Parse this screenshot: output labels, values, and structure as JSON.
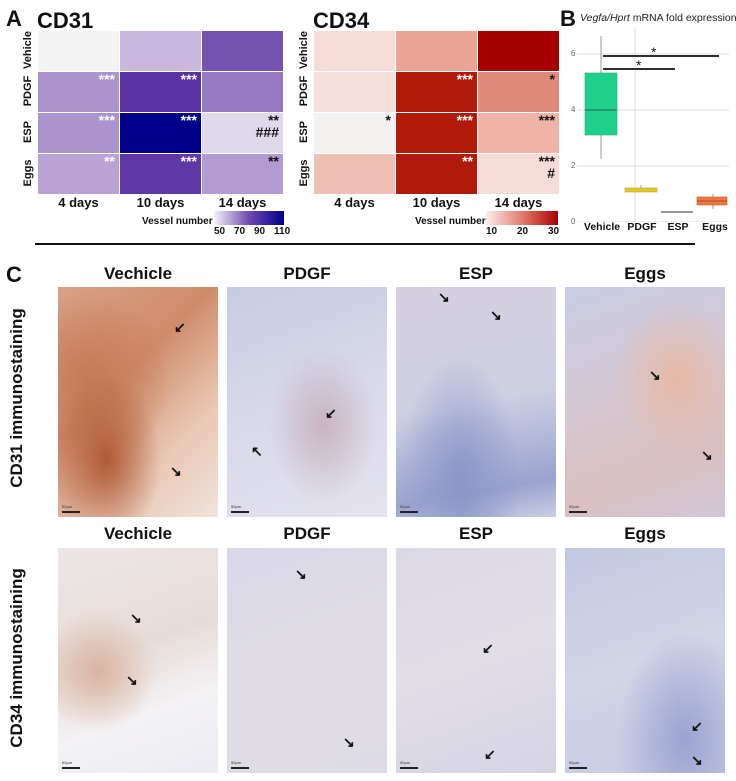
{
  "panel_A": {
    "letter": "A",
    "cd31": {
      "title": "CD31",
      "rows": [
        "Vehicle",
        "PDGF",
        "ESP",
        "Eggs"
      ],
      "columns": [
        "4 days",
        "10 days",
        "14 days"
      ],
      "colors": [
        [
          "#f4f3f4",
          "#c9b7de",
          "#7352b0"
        ],
        [
          "#ab94cd",
          "#5b32a3",
          "#9778c3"
        ],
        [
          "#ab94cd",
          "#00008b",
          "#e0d9ea"
        ],
        [
          "#b8a3d4",
          "#5f37a6",
          "#b19bd0"
        ]
      ],
      "sig": [
        [
          "",
          "",
          ""
        ],
        [
          "***",
          "***",
          ""
        ],
        [
          "***",
          "***",
          "**\n###"
        ],
        [
          "**",
          "***",
          "**"
        ]
      ],
      "sig_color": [
        [
          "#fff",
          "#fff",
          "#fff"
        ],
        [
          "#fff",
          "#fff",
          "#fff"
        ],
        [
          "#fff",
          "#fff",
          "#111"
        ],
        [
          "#fff",
          "#fff",
          "#111"
        ]
      ],
      "legend": {
        "label": "Vessel number",
        "ticks": [
          "50",
          "70",
          "90",
          "110"
        ],
        "gradient": [
          "#f4f2f7",
          "#6f4ab0",
          "#00008b"
        ]
      }
    },
    "cd34": {
      "title": "CD34",
      "rows": [
        "Vehicle",
        "PDGF",
        "ESP",
        "Eggs"
      ],
      "columns": [
        "4 days",
        "10 days",
        "14 days"
      ],
      "colors": [
        [
          "#f6dcd6",
          "#eaa597",
          "#a60000"
        ],
        [
          "#f6dfda",
          "#b11a08",
          "#e08a7a"
        ],
        [
          "#f4f1f1",
          "#b11a08",
          "#efb4a7"
        ],
        [
          "#efc1b5",
          "#b01a0a",
          "#f6dcd6"
        ]
      ],
      "sig": [
        [
          "",
          "",
          ""
        ],
        [
          "",
          "***",
          "*"
        ],
        [
          "*",
          "***",
          "***"
        ],
        [
          "",
          "**",
          "***\n#"
        ]
      ],
      "sig_color": [
        [
          "#111",
          "#fff",
          "#111"
        ],
        [
          "#111",
          "#fff",
          "#111"
        ],
        [
          "#111",
          "#fff",
          "#111"
        ],
        [
          "#111",
          "#fff",
          "#111"
        ]
      ],
      "legend": {
        "label": "Vessel number",
        "ticks": [
          "10",
          "20",
          "30"
        ],
        "gradient": [
          "#fbeeee",
          "#e27b6e",
          "#a80000"
        ]
      }
    }
  },
  "panel_B": {
    "letter": "B",
    "title_italic": "Vegfa/Hprt",
    "title_rest": " mRNA fold expression",
    "y_ticks": [
      "0",
      "2",
      "4",
      "6"
    ],
    "categories": [
      "Vehicle",
      "PDGF",
      "ESP",
      "Eggs"
    ],
    "sig_bars": [
      "*",
      "*"
    ]
  },
  "panel_C": {
    "letter": "C",
    "columns": [
      "Vechicle",
      "PDGF",
      "ESP",
      "Eggs"
    ],
    "rows": [
      "CD31 immunostaining",
      "CD34 immunostaining"
    ],
    "scale_label": "50μm"
  },
  "chart_data": [
    {
      "type": "heatmap",
      "title": "CD31",
      "x": [
        "4 days",
        "10 days",
        "14 days"
      ],
      "y": [
        "Vehicle",
        "PDGF",
        "ESP",
        "Eggs"
      ],
      "colorbar_label": "Vessel number",
      "colorbar_ticks": [
        50,
        70,
        90,
        110
      ],
      "values": [
        [
          40,
          62,
          90
        ],
        [
          72,
          100,
          80
        ],
        [
          72,
          115,
          52
        ],
        [
          68,
          98,
          70
        ]
      ],
      "annotations": [
        [
          "",
          "",
          ""
        ],
        [
          "***",
          "***",
          ""
        ],
        [
          "***",
          "***",
          "** ###"
        ],
        [
          "**",
          "***",
          "**"
        ]
      ]
    },
    {
      "type": "heatmap",
      "title": "CD34",
      "x": [
        "4 days",
        "10 days",
        "14 days"
      ],
      "y": [
        "Vehicle",
        "PDGF",
        "ESP",
        "Eggs"
      ],
      "colorbar_label": "Vessel number",
      "colorbar_ticks": [
        10,
        20,
        30
      ],
      "values": [
        [
          10,
          18,
          38
        ],
        [
          9,
          34,
          22
        ],
        [
          5,
          34,
          16
        ],
        [
          13,
          33,
          10
        ]
      ],
      "annotations": [
        [
          "",
          "",
          ""
        ],
        [
          "",
          "***",
          "*"
        ],
        [
          "*",
          "***",
          "***"
        ],
        [
          "",
          "**",
          "*** #"
        ]
      ]
    },
    {
      "type": "box",
      "title": "Vegfa/Hprt mRNA fold expression",
      "categories": [
        "Vehicle",
        "PDGF",
        "ESP",
        "Eggs"
      ],
      "ylim": [
        0,
        6.5
      ],
      "yticks": [
        0,
        2,
        4,
        6
      ],
      "series": [
        {
          "name": "Vehicle",
          "min": 2.2,
          "q1": 3.1,
          "median": 4.0,
          "q3": 5.3,
          "max": 6.6,
          "color": "#1fd08a"
        },
        {
          "name": "PDGF",
          "min": 1.05,
          "q1": 1.05,
          "median": 1.1,
          "q3": 1.15,
          "max": 1.3,
          "color": "#e3c72c"
        },
        {
          "name": "ESP",
          "min": 0.3,
          "q1": 0.3,
          "median": 0.3,
          "q3": 0.3,
          "max": 0.3,
          "color": "#333333"
        },
        {
          "name": "Eggs",
          "min": 0.45,
          "q1": 0.65,
          "median": 0.78,
          "q3": 0.9,
          "max": 1.0,
          "color": "#f2773a"
        }
      ],
      "significance": [
        {
          "from": "Vehicle",
          "to": "ESP",
          "label": "*"
        },
        {
          "from": "Vehicle",
          "to": "Eggs",
          "label": "*"
        }
      ]
    }
  ]
}
